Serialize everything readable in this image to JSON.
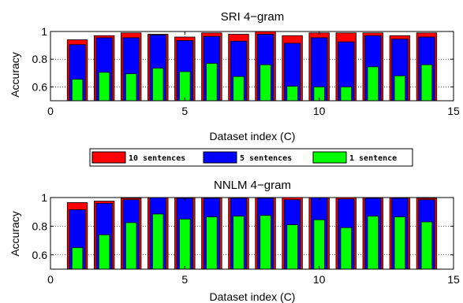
{
  "chart_data": [
    {
      "type": "bar",
      "title": "SRI 4−gram",
      "xlabel": "Dataset index (C)",
      "ylabel": "Accuracy",
      "x": [
        1,
        2,
        3,
        4,
        5,
        6,
        7,
        8,
        9,
        10,
        11,
        12,
        13,
        14
      ],
      "xlim": [
        0,
        15
      ],
      "ylim": [
        0.5,
        1
      ],
      "xticks": [
        "0",
        "5",
        "10",
        "15"
      ],
      "yticks": [
        "0.6",
        "0.8",
        "1"
      ],
      "grid": true,
      "series": [
        {
          "name": "10 sentences",
          "color": "#ff0000",
          "values": [
            0.94,
            0.97,
            0.99,
            0.98,
            0.96,
            0.99,
            0.98,
            1.0,
            0.97,
            0.99,
            0.99,
            0.99,
            0.97,
            0.99
          ]
        },
        {
          "name": "5 sentences",
          "color": "#0000ff",
          "values": [
            0.905,
            0.955,
            0.955,
            0.975,
            0.935,
            0.965,
            0.93,
            0.98,
            0.915,
            0.955,
            0.925,
            0.97,
            0.945,
            0.96
          ]
        },
        {
          "name": "1 sentence",
          "color": "#00ff00",
          "values": [
            0.655,
            0.705,
            0.695,
            0.735,
            0.71,
            0.77,
            0.675,
            0.76,
            0.605,
            0.6,
            0.6,
            0.745,
            0.68,
            0.76
          ]
        }
      ]
    },
    {
      "type": "bar",
      "title": "NNLM 4−gram",
      "xlabel": "Dataset index (C)",
      "ylabel": "Accuracy",
      "x": [
        1,
        2,
        3,
        4,
        5,
        6,
        7,
        8,
        9,
        10,
        11,
        12,
        13,
        14
      ],
      "xlim": [
        0,
        15
      ],
      "ylim": [
        0.5,
        1
      ],
      "xticks": [
        "0",
        "5",
        "10",
        "15"
      ],
      "yticks": [
        "0.6",
        "0.8",
        "1"
      ],
      "grid": true,
      "series": [
        {
          "name": "10 sentences",
          "color": "#ff0000",
          "values": [
            0.965,
            0.975,
            0.995,
            1.0,
            1.0,
            1.0,
            1.0,
            1.0,
            1.0,
            1.0,
            1.0,
            1.0,
            1.0,
            0.995
          ]
        },
        {
          "name": "5 sentences",
          "color": "#0000ff",
          "values": [
            0.915,
            0.96,
            0.985,
            1.0,
            0.995,
            0.995,
            0.995,
            0.995,
            0.985,
            1.0,
            0.99,
            0.995,
            0.995,
            0.985
          ]
        },
        {
          "name": "1 sentence",
          "color": "#00ff00",
          "values": [
            0.65,
            0.74,
            0.825,
            0.885,
            0.85,
            0.865,
            0.87,
            0.875,
            0.81,
            0.845,
            0.79,
            0.87,
            0.865,
            0.83
          ]
        }
      ]
    }
  ],
  "legend": {
    "placement": "between-panels",
    "items": [
      {
        "label": "10 sentences",
        "color": "#ff0000"
      },
      {
        "label": "5 sentences",
        "color": "#0000ff"
      },
      {
        "label": "1 sentence",
        "color": "#00ff00"
      }
    ]
  }
}
